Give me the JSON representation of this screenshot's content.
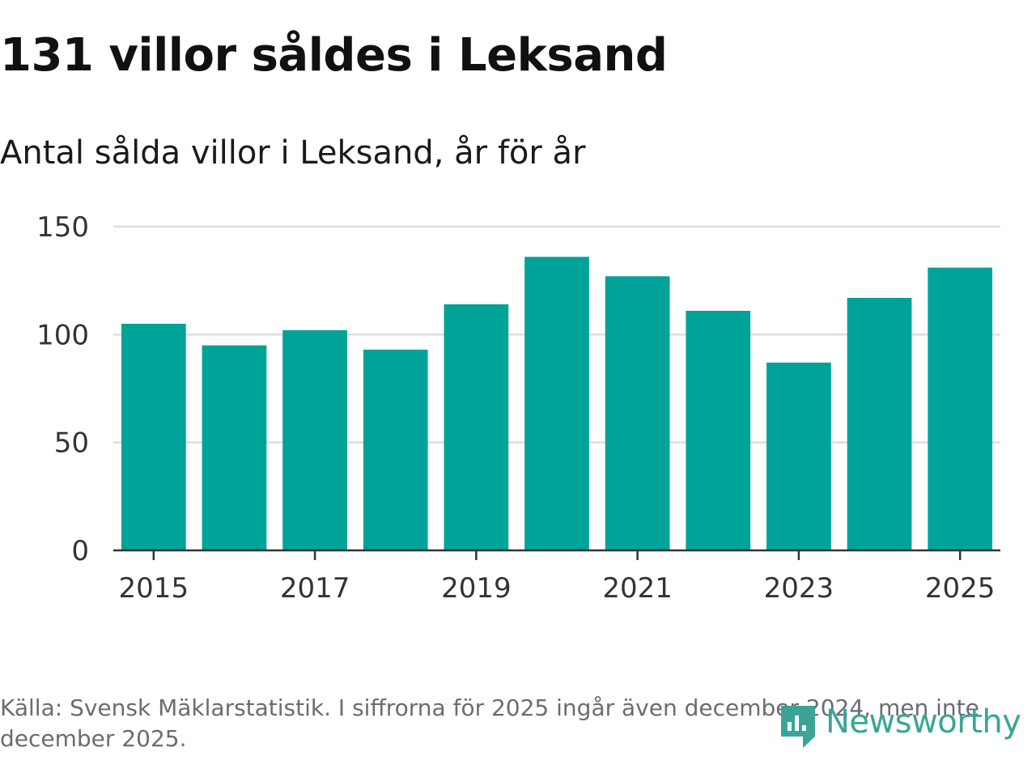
{
  "title": "131 villor såldes i Leksand",
  "subtitle": "Antal sålda villor i Leksand, år för år",
  "source": "Källa: Svensk Mäklarstatistik. I siffrorna för 2025 ingår även december 2024, men inte december 2025.",
  "logo": {
    "name": "Newsworthy",
    "icon": "newsworthy-logo-icon",
    "color": "#3aa597"
  },
  "chart_data": {
    "type": "bar",
    "title": "131 villor såldes i Leksand",
    "subtitle": "Antal sålda villor i Leksand, år för år",
    "xlabel": "",
    "ylabel": "",
    "categories": [
      "2015",
      "2016",
      "2017",
      "2018",
      "2019",
      "2020",
      "2021",
      "2022",
      "2023",
      "2024",
      "2025"
    ],
    "values": [
      105,
      95,
      102,
      93,
      114,
      136,
      127,
      111,
      87,
      117,
      131
    ],
    "ylim": [
      0,
      150
    ],
    "yticks": [
      0,
      50,
      100,
      150
    ],
    "xtick_labels": [
      "2015",
      "2017",
      "2019",
      "2021",
      "2023",
      "2025"
    ],
    "bar_color": "#00a398",
    "grid": true
  }
}
